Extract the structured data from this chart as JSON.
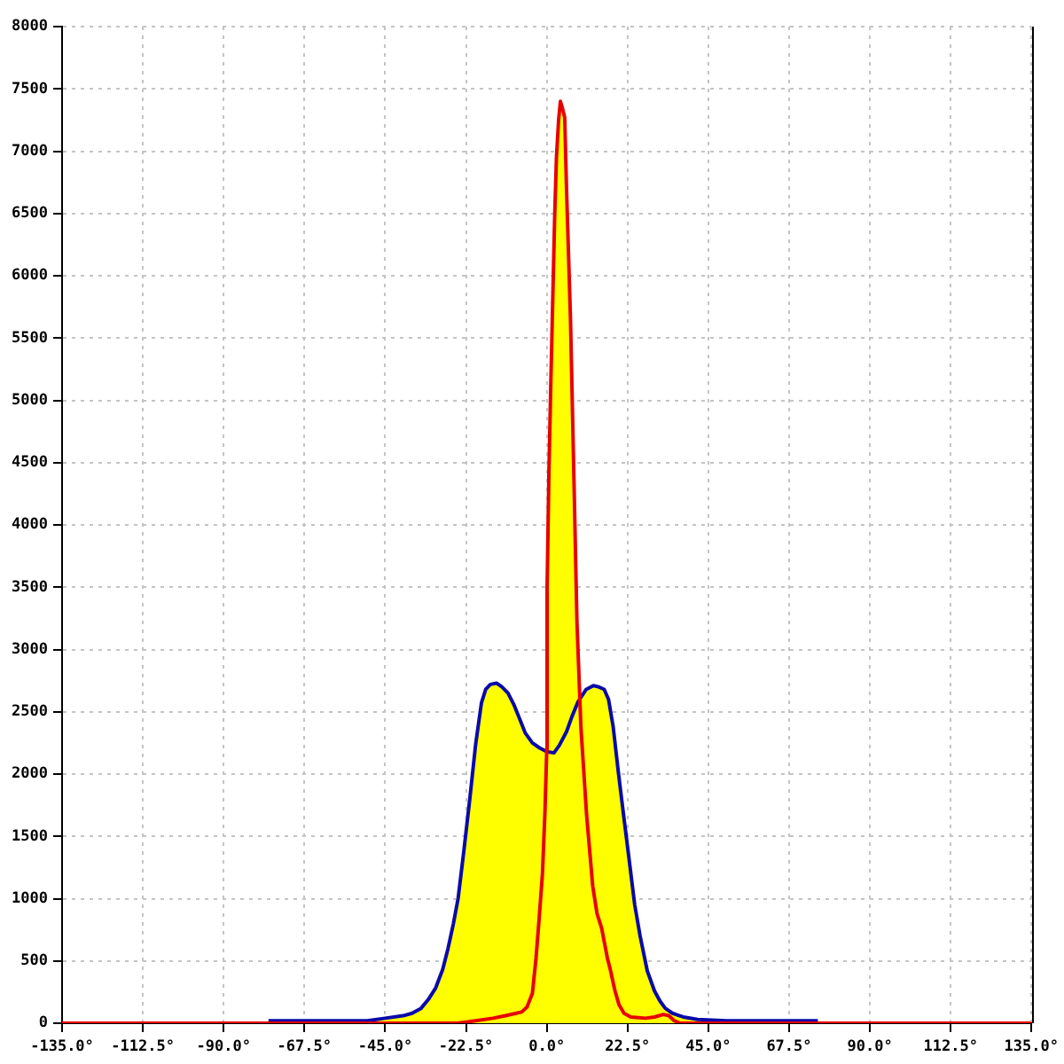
{
  "chart_data": {
    "type": "line",
    "xlim": [
      -135,
      135
    ],
    "ylim": [
      0,
      8000
    ],
    "xticks": [
      {
        "value": -135,
        "label": "-135.0°"
      },
      {
        "value": -112.5,
        "label": "-112.5°"
      },
      {
        "value": -90,
        "label": "-90.0°"
      },
      {
        "value": -67.5,
        "label": "-67.5°"
      },
      {
        "value": -45,
        "label": "-45.0°"
      },
      {
        "value": -22.5,
        "label": "-22.5°"
      },
      {
        "value": 0,
        "label": "0.0°"
      },
      {
        "value": 22.5,
        "label": "22.5°"
      },
      {
        "value": 45,
        "label": "45.0°"
      },
      {
        "value": 67.5,
        "label": "67.5°"
      },
      {
        "value": 90,
        "label": "90.0°"
      },
      {
        "value": 112.5,
        "label": "112.5°"
      },
      {
        "value": 135,
        "label": "135.0°"
      }
    ],
    "yticks": [
      0,
      500,
      1000,
      1500,
      2000,
      2500,
      3000,
      3500,
      4000,
      4500,
      5000,
      5500,
      6000,
      6500,
      7000,
      7500,
      8000
    ],
    "grid": true,
    "series": [
      {
        "type": "area",
        "color": "#ffff00",
        "x": [
          -77.5,
          -60,
          -50,
          -45,
          -40,
          -37.5,
          -35,
          -33,
          -31,
          -29,
          -27.5,
          -26,
          -24.7,
          -23.1,
          -21.4,
          -19.8,
          -18.2,
          -17,
          -15.7,
          -14,
          -12.5,
          -10.8,
          -9.2,
          -7.5,
          -6,
          -4,
          -2,
          0,
          0.1,
          0.6,
          1.1,
          1.7,
          2.2,
          2.7,
          3.3,
          3.8,
          4.3,
          5,
          5.5,
          6.6,
          7.6,
          8.4,
          9,
          11,
          13,
          14.4,
          16,
          17.2,
          18.5,
          20,
          21.4,
          23,
          24.5,
          26,
          28,
          30,
          31.5,
          33,
          35,
          38,
          42,
          50,
          60,
          75.5
        ],
        "values": [
          20,
          20,
          20,
          40,
          60,
          80,
          120,
          190,
          280,
          430,
          600,
          800,
          1000,
          1380,
          1810,
          2240,
          2570,
          2680,
          2720,
          2730,
          2700,
          2650,
          2560,
          2440,
          2330,
          2250,
          2210,
          2200,
          3500,
          4420,
          5100,
          5850,
          6470,
          6950,
          7250,
          7400,
          7350,
          7270,
          6700,
          5660,
          4330,
          3230,
          2620,
          2680,
          2710,
          2700,
          2680,
          2600,
          2380,
          2000,
          1670,
          1300,
          950,
          700,
          420,
          260,
          180,
          120,
          80,
          50,
          30,
          20,
          20,
          20
        ]
      },
      {
        "color": "#0a0aaa",
        "x": [
          -77.5,
          -60,
          -50,
          -45,
          -40,
          -37.5,
          -35,
          -33,
          -31,
          -29,
          -27.5,
          -26,
          -24.7,
          -23.1,
          -21.4,
          -19.8,
          -18.2,
          -17,
          -15.7,
          -14,
          -12.5,
          -10.8,
          -9.2,
          -7.5,
          -6,
          -4,
          -2,
          0,
          2,
          3.5,
          5.5,
          7,
          8.7,
          11,
          13,
          14.4,
          16,
          17.2,
          18.5,
          20,
          21.4,
          23,
          24.5,
          26,
          28,
          30,
          31.5,
          33,
          35,
          38,
          42,
          50,
          60,
          75.5
        ],
        "values": [
          20,
          20,
          20,
          40,
          60,
          80,
          120,
          190,
          280,
          430,
          600,
          800,
          1000,
          1380,
          1810,
          2240,
          2570,
          2680,
          2720,
          2730,
          2700,
          2650,
          2560,
          2440,
          2330,
          2250,
          2210,
          2180,
          2170,
          2230,
          2340,
          2460,
          2580,
          2680,
          2710,
          2700,
          2680,
          2600,
          2380,
          2000,
          1670,
          1300,
          950,
          700,
          420,
          260,
          180,
          120,
          80,
          50,
          30,
          20,
          20,
          20
        ]
      },
      {
        "color": "#e80000",
        "x": [
          -135,
          -25,
          -22,
          -15,
          -11.5,
          -7,
          -5.5,
          -4,
          -3,
          -2.2,
          -1.2,
          -0.5,
          0,
          0.1,
          0.6,
          1.1,
          1.7,
          2.2,
          2.7,
          3.3,
          3.8,
          4.3,
          5,
          5.5,
          6.6,
          7.6,
          8.4,
          9.5,
          11.1,
          12.8,
          14,
          15.3,
          16.9,
          17.7,
          19,
          20.1,
          21.5,
          23.4,
          27.5,
          30,
          32.5,
          34,
          35.5,
          37.2,
          135
        ],
        "values": [
          0,
          0,
          10,
          40,
          60,
          90,
          130,
          240,
          520,
          810,
          1200,
          1700,
          2200,
          3500,
          4420,
          5100,
          5850,
          6470,
          6950,
          7250,
          7400,
          7350,
          7270,
          6700,
          5660,
          4330,
          3230,
          2380,
          1670,
          1100,
          880,
          760,
          520,
          430,
          260,
          150,
          80,
          50,
          40,
          50,
          70,
          60,
          20,
          0,
          0
        ]
      }
    ]
  }
}
